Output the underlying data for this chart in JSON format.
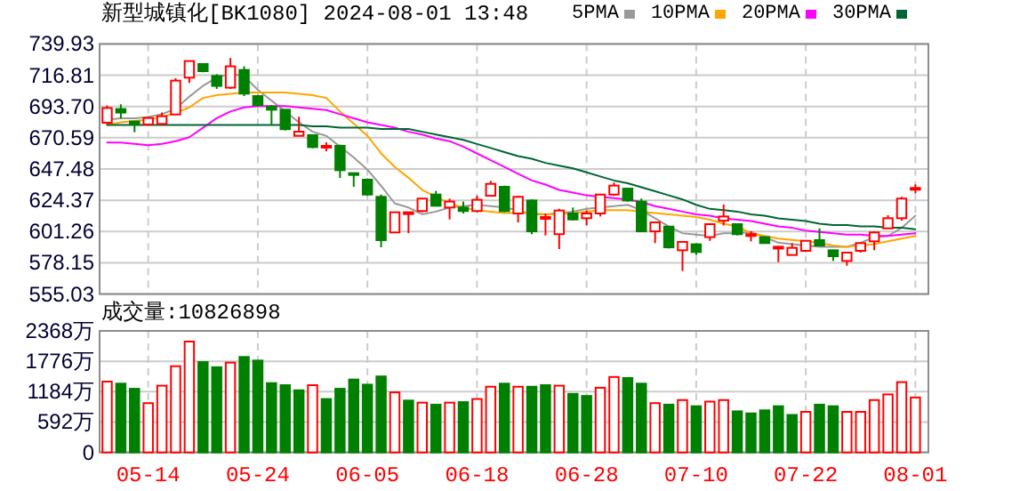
{
  "chart_data": [
    {
      "type": "candlestick",
      "title": "新型城镇化[BK1080] 2024-08-01 13:48",
      "categories": [
        null,
        null,
        null,
        null,
        null,
        null,
        null,
        null,
        null,
        null,
        null,
        null,
        null,
        null,
        null,
        null,
        null,
        null,
        null,
        null,
        null,
        null,
        null,
        null,
        null,
        null,
        null,
        null,
        null,
        null,
        null,
        null,
        null,
        null,
        null,
        null,
        null,
        null,
        null,
        null,
        null,
        null,
        null,
        null,
        null,
        null,
        null,
        null,
        null,
        null,
        null,
        null,
        null,
        null,
        null,
        null,
        null,
        null,
        null,
        null
      ],
      "ohlc": [
        [
          681.7,
          694.4,
          680.4,
          692.6
        ],
        [
          691.8,
          695.3,
          684.8,
          689.2
        ],
        [
          682.6,
          682.6,
          674.7,
          680.4
        ],
        [
          680.4,
          686.1,
          680.4,
          685.2
        ],
        [
          680.8,
          689.2,
          680.4,
          686.5
        ],
        [
          687.8,
          714.6,
          687.8,
          712.8
        ],
        [
          715.0,
          727.3,
          711.1,
          727.3
        ],
        [
          725.1,
          725.1,
          719.0,
          719.8
        ],
        [
          716.3,
          717.6,
          706.7,
          708.9
        ],
        [
          707.6,
          729.5,
          706.7,
          723.4
        ],
        [
          720.7,
          723.4,
          701.4,
          703.2
        ],
        [
          701.4,
          702.3,
          693.5,
          694.8
        ],
        [
          693.5,
          694.8,
          680.4,
          691.3
        ],
        [
          691.3,
          691.3,
          676.0,
          676.9
        ],
        [
          672.0,
          686.1,
          672.0,
          675.1
        ],
        [
          672.5,
          672.9,
          662.8,
          663.7
        ],
        [
          663.7,
          667.2,
          660.6,
          664.6
        ],
        [
          664.6,
          665.5,
          640.9,
          646.6
        ],
        [
          644.4,
          644.4,
          634.3,
          643.5
        ],
        [
          639.6,
          640.5,
          627.8,
          628.6
        ],
        [
          626.9,
          628.6,
          589.6,
          594.9
        ],
        [
          600.6,
          615.9,
          600.1,
          615.5
        ],
        [
          614.6,
          615.9,
          600.1,
          615.5
        ],
        [
          616.4,
          625.6,
          615.5,
          625.6
        ],
        [
          628.6,
          631.3,
          620.3,
          620.3
        ],
        [
          619.0,
          625.6,
          610.2,
          623.4
        ],
        [
          619.0,
          623.4,
          614.6,
          616.4
        ],
        [
          616.4,
          627.7,
          615.5,
          624.7
        ],
        [
          627.7,
          638.7,
          627.7,
          636.5
        ],
        [
          634.3,
          635.2,
          615.5,
          616.4
        ],
        [
          614.6,
          627.7,
          608.0,
          626.9
        ],
        [
          624.2,
          625.1,
          599.3,
          601.4
        ],
        [
          611.1,
          614.6,
          598.4,
          612.0
        ],
        [
          599.3,
          618.1,
          588.3,
          616.8
        ],
        [
          614.6,
          619.0,
          609.3,
          610.2
        ],
        [
          611.1,
          616.8,
          605.8,
          614.6
        ],
        [
          614.6,
          629.1,
          612.4,
          628.6
        ],
        [
          628.6,
          637.4,
          627.7,
          635.2
        ],
        [
          633.0,
          633.0,
          623.4,
          624.2
        ],
        [
          623.4,
          625.6,
          601.4,
          601.4
        ],
        [
          601.4,
          608.0,
          592.7,
          608.0
        ],
        [
          604.9,
          604.9,
          588.7,
          589.6
        ],
        [
          587.4,
          593.6,
          572.1,
          593.6
        ],
        [
          591.8,
          592.7,
          583.9,
          586.1
        ],
        [
          597.1,
          606.7,
          594.4,
          606.7
        ],
        [
          609.3,
          621.2,
          605.8,
          612.4
        ],
        [
          606.7,
          606.7,
          598.4,
          599.3
        ],
        [
          598.4,
          601.4,
          594.0,
          599.3
        ],
        [
          597.1,
          597.1,
          592.7,
          592.7
        ],
        [
          589.6,
          590.5,
          578.6,
          590.0
        ],
        [
          583.9,
          592.7,
          583.9,
          589.2
        ],
        [
          587.0,
          594.9,
          586.1,
          594.4
        ],
        [
          594.9,
          603.6,
          590.9,
          590.9
        ],
        [
          587.4,
          587.4,
          579.5,
          583.0
        ],
        [
          579.5,
          585.7,
          576.0,
          585.7
        ],
        [
          587.0,
          592.7,
          585.7,
          592.7
        ],
        [
          594.0,
          601.4,
          587.4,
          600.6
        ],
        [
          603.6,
          613.3,
          603.6,
          611.1
        ],
        [
          611.1,
          626.9,
          609.3,
          625.6
        ],
        [
          633.0,
          636.1,
          629.5,
          633.5
        ]
      ],
      "colors": [
        "#ff0000",
        "#008000",
        "#008000",
        "#ff0000",
        "#ff0000",
        "#ff0000",
        "#ff0000",
        "#008000",
        "#008000",
        "#ff0000",
        "#008000",
        "#008000",
        "#008000",
        "#008000",
        "#ff0000",
        "#008000",
        "#ff0000",
        "#008000",
        "#008000",
        "#008000",
        "#008000",
        "#ff0000",
        "#ff0000",
        "#ff0000",
        "#008000",
        "#ff0000",
        "#008000",
        "#ff0000",
        "#ff0000",
        "#008000",
        "#ff0000",
        "#008000",
        "#ff0000",
        "#ff0000",
        "#008000",
        "#ff0000",
        "#ff0000",
        "#ff0000",
        "#008000",
        "#008000",
        "#ff0000",
        "#008000",
        "#ff0000",
        "#008000",
        "#ff0000",
        "#ff0000",
        "#008000",
        "#ff0000",
        "#008000",
        "#ff0000",
        "#ff0000",
        "#ff0000",
        "#008000",
        "#008000",
        "#ff0000",
        "#ff0000",
        "#ff0000",
        "#ff0000",
        "#ff0000",
        "#ff0000"
      ],
      "series": [
        {
          "name": "5PMA",
          "type": "line",
          "color": "#999999",
          "values": [
            684,
            685,
            685,
            686,
            688,
            692,
            701,
            709,
            715,
            718,
            716,
            706,
            698,
            690,
            682,
            675,
            672,
            664,
            656,
            647,
            635,
            622,
            619,
            614,
            616,
            619,
            620,
            621,
            620,
            619,
            617,
            614,
            614,
            615,
            616,
            618,
            619,
            620,
            621,
            617,
            611,
            605,
            600,
            599,
            598,
            600,
            600,
            601,
            597,
            593,
            592,
            591,
            590,
            590,
            590,
            593,
            597,
            598,
            604,
            613
          ]
        },
        {
          "name": "10PMA",
          "type": "line",
          "color": "#ffa500",
          "values": [
            680,
            682,
            683,
            684,
            686,
            689,
            693,
            700,
            702,
            703,
            704,
            704,
            704,
            704,
            703,
            702,
            700,
            690,
            681,
            672,
            659,
            649,
            641,
            632,
            627,
            622,
            619,
            617,
            616,
            615,
            615,
            615,
            614,
            614,
            615,
            616,
            617,
            617,
            617,
            616,
            615,
            614,
            613,
            612,
            610,
            607,
            605,
            600,
            598,
            596,
            595,
            594,
            593,
            591,
            590,
            591,
            592,
            594,
            596,
            598
          ]
        },
        {
          "name": "20PMA",
          "type": "line",
          "color": "#ff00ff",
          "values": [
            667,
            667,
            666,
            665,
            666,
            668,
            671,
            678,
            685,
            690,
            693,
            694,
            694,
            694,
            693,
            692,
            691,
            688,
            685,
            682,
            680,
            678,
            675,
            673,
            670,
            668,
            664,
            659,
            654,
            649,
            644,
            639,
            636,
            632,
            630,
            628,
            627,
            626,
            625,
            623,
            620,
            618,
            616,
            614,
            613,
            611,
            610,
            609,
            607,
            605,
            604,
            602,
            601,
            600,
            599,
            599,
            598,
            598,
            599,
            600
          ]
        },
        {
          "name": "30PMA",
          "type": "line",
          "color": "#006633",
          "values": [
            680,
            680,
            680,
            680,
            680,
            680,
            680,
            680,
            680,
            680,
            680,
            680,
            680,
            680,
            680,
            679,
            679,
            678,
            678,
            678,
            677,
            677,
            677,
            675,
            673,
            671,
            669,
            666,
            663,
            660,
            657,
            655,
            652,
            650,
            648,
            645,
            642,
            639,
            637,
            634,
            631,
            628,
            625,
            621,
            618,
            617,
            616,
            614,
            613,
            611,
            610,
            609,
            607,
            606,
            606,
            605,
            605,
            604,
            604,
            603
          ]
        }
      ],
      "ylim": [
        555.03,
        739.93
      ],
      "yticks": [
        739.93,
        716.81,
        {
          "value": 693.7,
          "label": "693.70"
        },
        670.59,
        647.48,
        624.37,
        601.26,
        578.15,
        555.03
      ],
      "grid": true,
      "legend": "top right",
      "tick_labels": "y"
    },
    {
      "type": "bar",
      "title": "成交量:10826898",
      "categories": [
        null,
        null,
        null,
        "05-14",
        null,
        null,
        null,
        null,
        null,
        null,
        null,
        "05-24",
        null,
        null,
        null,
        null,
        null,
        null,
        null,
        "06-05",
        null,
        null,
        null,
        null,
        null,
        null,
        null,
        "06-18",
        null,
        null,
        null,
        null,
        null,
        null,
        null,
        "06-28",
        null,
        null,
        null,
        null,
        null,
        null,
        null,
        "07-10",
        null,
        null,
        null,
        null,
        null,
        null,
        null,
        "07-22",
        null,
        null,
        null,
        null,
        null,
        null,
        null,
        "08-01"
      ],
      "values": [
        1380,
        1340,
        1240,
        960,
        1300,
        1680,
        2160,
        1760,
        1660,
        1750,
        1860,
        1790,
        1350,
        1310,
        1210,
        1310,
        1040,
        1240,
        1420,
        1320,
        1480,
        1170,
        1010,
        970,
        930,
        970,
        980,
        1040,
        1280,
        1340,
        1280,
        1280,
        1310,
        1300,
        1140,
        1100,
        1260,
        1470,
        1450,
        1340,
        960,
        930,
        1020,
        900,
        990,
        1020,
        800,
        760,
        820,
        900,
        730,
        790,
        930,
        900,
        790,
        790,
        1020,
        1130,
        1370,
        1070
      ],
      "colors": [
        "#ff0000",
        "#008000",
        "#008000",
        "#ff0000",
        "#ff0000",
        "#ff0000",
        "#ff0000",
        "#008000",
        "#008000",
        "#ff0000",
        "#008000",
        "#008000",
        "#008000",
        "#008000",
        "#008000",
        "#ff0000",
        "#008000",
        "#008000",
        "#008000",
        "#008000",
        "#008000",
        "#ff0000",
        "#008000",
        "#ff0000",
        "#008000",
        "#ff0000",
        "#008000",
        "#ff0000",
        "#ff0000",
        "#008000",
        "#ff0000",
        "#008000",
        "#008000",
        "#ff0000",
        "#008000",
        "#008000",
        "#ff0000",
        "#ff0000",
        "#008000",
        "#008000",
        "#ff0000",
        "#008000",
        "#ff0000",
        "#008000",
        "#ff0000",
        "#ff0000",
        "#008000",
        "#008000",
        "#008000",
        "#008000",
        "#008000",
        "#ff0000",
        "#008000",
        "#008000",
        "#ff0000",
        "#ff0000",
        "#ff0000",
        "#ff0000",
        "#ff0000",
        "#ff0000"
      ],
      "ylim": [
        0,
        2368
      ],
      "yticks": [
        0,
        {
          "value": 592,
          "label": "592万"
        },
        {
          "value": 1184,
          "label": "1184万"
        },
        {
          "value": 1776,
          "label": "1776万"
        },
        {
          "value": 2368,
          "label": "2368万"
        }
      ],
      "grid": true
    }
  ]
}
